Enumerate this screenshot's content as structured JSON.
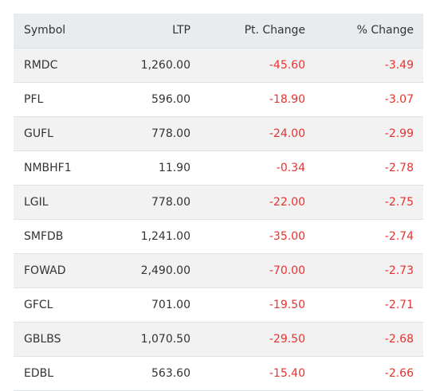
{
  "table": {
    "headers": {
      "symbol": "Symbol",
      "ltp": "LTP",
      "pt_change": "Pt. Change",
      "pct_change": "% Change"
    },
    "rows": [
      {
        "symbol": "RMDC",
        "ltp": "1,260.00",
        "pt_change": "-45.60",
        "pct_change": "-3.49"
      },
      {
        "symbol": "PFL",
        "ltp": "596.00",
        "pt_change": "-18.90",
        "pct_change": "-3.07"
      },
      {
        "symbol": "GUFL",
        "ltp": "778.00",
        "pt_change": "-24.00",
        "pct_change": "-2.99"
      },
      {
        "symbol": "NMBHF1",
        "ltp": "11.90",
        "pt_change": "-0.34",
        "pct_change": "-2.78"
      },
      {
        "symbol": "LGIL",
        "ltp": "778.00",
        "pt_change": "-22.00",
        "pct_change": "-2.75"
      },
      {
        "symbol": "SMFDB",
        "ltp": "1,241.00",
        "pt_change": "-35.00",
        "pct_change": "-2.74"
      },
      {
        "symbol": "FOWAD",
        "ltp": "2,490.00",
        "pt_change": "-70.00",
        "pct_change": "-2.73"
      },
      {
        "symbol": "GFCL",
        "ltp": "701.00",
        "pt_change": "-19.50",
        "pct_change": "-2.71"
      },
      {
        "symbol": "GBLBS",
        "ltp": "1,070.50",
        "pt_change": "-29.50",
        "pct_change": "-2.68"
      },
      {
        "symbol": "EDBL",
        "ltp": "563.60",
        "pt_change": "-15.40",
        "pct_change": "-2.66"
      }
    ]
  },
  "colors": {
    "negative": "#e8322f",
    "header_bg": "#e9ecef",
    "stripe_bg": "#f2f2f2"
  }
}
